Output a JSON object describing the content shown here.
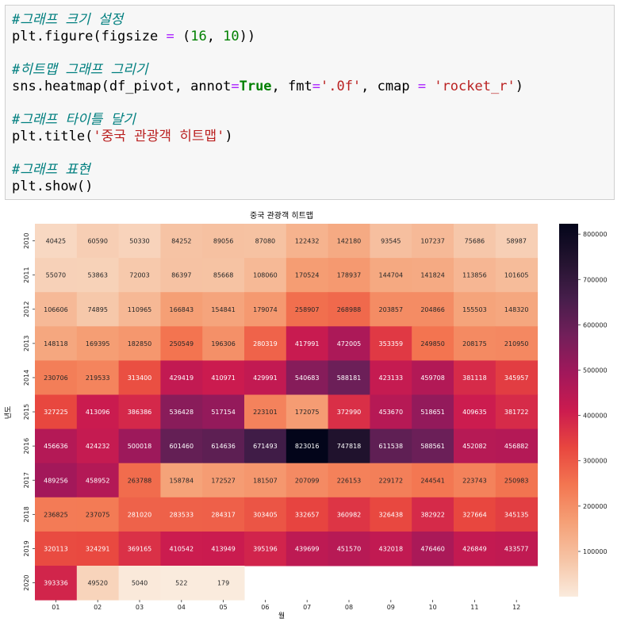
{
  "code": {
    "lines": [
      [
        {
          "t": "#그래프 크기 설정",
          "c": "c-comment"
        }
      ],
      [
        {
          "t": "plt.figure(figsize "
        },
        {
          "t": "=",
          "c": "c-op"
        },
        {
          "t": " ("
        },
        {
          "t": "16",
          "c": "c-num"
        },
        {
          "t": ", "
        },
        {
          "t": "10",
          "c": "c-num"
        },
        {
          "t": "))"
        }
      ],
      [],
      [
        {
          "t": "#히트맵 그래프 그리기",
          "c": "c-comment"
        }
      ],
      [
        {
          "t": "sns.heatmap(df_pivot, annot"
        },
        {
          "t": "=",
          "c": "c-op"
        },
        {
          "t": "True",
          "c": "c-kw"
        },
        {
          "t": ", fmt"
        },
        {
          "t": "=",
          "c": "c-op"
        },
        {
          "t": "'.0f'",
          "c": "c-str"
        },
        {
          "t": ", cmap "
        },
        {
          "t": "=",
          "c": "c-op"
        },
        {
          "t": " "
        },
        {
          "t": "'rocket_r'",
          "c": "c-str"
        },
        {
          "t": ")"
        }
      ],
      [],
      [
        {
          "t": "#그래프 타이틀 달기",
          "c": "c-comment"
        }
      ],
      [
        {
          "t": "plt.title("
        },
        {
          "t": "'중국 관광객 히트맵'",
          "c": "c-str"
        },
        {
          "t": ")"
        }
      ],
      [],
      [
        {
          "t": "#그래프 표현",
          "c": "c-comment"
        }
      ],
      [
        {
          "t": "plt.show()"
        }
      ]
    ]
  },
  "chart_data": {
    "type": "heatmap",
    "title": "중국 관광객 히트맵",
    "xlabel": "월",
    "ylabel": "년도",
    "x": [
      "01",
      "02",
      "03",
      "04",
      "05",
      "06",
      "07",
      "08",
      "09",
      "10",
      "11",
      "12"
    ],
    "y": [
      "2010",
      "2011",
      "2012",
      "2013",
      "2014",
      "2015",
      "2016",
      "2017",
      "2018",
      "2019",
      "2020"
    ],
    "values": [
      [
        40425,
        60590,
        50330,
        84252,
        89056,
        87080,
        122432,
        142180,
        93545,
        107237,
        75686,
        58987
      ],
      [
        55070,
        53863,
        72003,
        86397,
        85668,
        108060,
        170524,
        178937,
        144704,
        141824,
        113856,
        101605
      ],
      [
        106606,
        74895,
        110965,
        166843,
        154841,
        179074,
        258907,
        268988,
        203857,
        204866,
        155503,
        148320
      ],
      [
        148118,
        169395,
        182850,
        250549,
        196306,
        280319,
        417991,
        472005,
        353359,
        249850,
        208175,
        210950
      ],
      [
        230706,
        219533,
        313400,
        429419,
        410971,
        429991,
        540683,
        588181,
        423133,
        459708,
        381118,
        345957
      ],
      [
        327225,
        413096,
        386386,
        536428,
        517154,
        223101,
        172075,
        372990,
        453670,
        518651,
        409635,
        381722
      ],
      [
        456636,
        424232,
        500018,
        601460,
        614636,
        671493,
        823016,
        747818,
        611538,
        588561,
        452082,
        456882
      ],
      [
        489256,
        458952,
        263788,
        158784,
        172527,
        181507,
        207099,
        226153,
        229172,
        244541,
        223743,
        250983
      ],
      [
        236825,
        237075,
        281020,
        283533,
        284317,
        303405,
        332657,
        360982,
        326438,
        382922,
        327664,
        345135
      ],
      [
        320113,
        324291,
        369165,
        410542,
        413949,
        395196,
        439699,
        451570,
        432018,
        476460,
        426849,
        433577
      ],
      [
        393336,
        49520,
        5040,
        522,
        179,
        null,
        null,
        null,
        null,
        null,
        null,
        null
      ]
    ],
    "colormap": "rocket_r",
    "vmin": 179,
    "vmax": 823016,
    "colorbar_ticks": [
      100000,
      200000,
      300000,
      400000,
      500000,
      600000,
      700000,
      800000
    ],
    "colorbar_tick_labels": [
      "100000",
      "200000",
      "300000",
      "400000",
      "500000",
      "600000",
      "700000",
      "800000"
    ],
    "annot": true,
    "fmt": ".0f"
  }
}
